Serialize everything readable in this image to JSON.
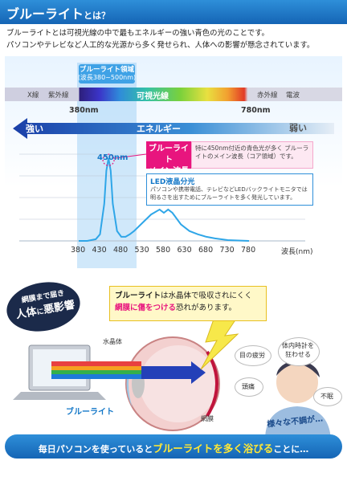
{
  "header": {
    "title": "ブルーライト",
    "title_suffix": "とは？"
  },
  "intro": {
    "line1": "ブルーライトとは可視光線の中で最もエネルギーの強い青色の光のことです。",
    "line2": "パソコンやテレビなど人工的な光源から多く発せられ、人体への影響が懸念されています。"
  },
  "spectrum": {
    "band_title": "ブルーライト領域",
    "band_range": "(波長380~500nm)",
    "left_labels": [
      "X線",
      "紫外線"
    ],
    "visible_label": "可視光線",
    "right_labels": [
      "赤外線",
      "電波"
    ],
    "nm_start": "380nm",
    "nm_end": "780nm"
  },
  "energy": {
    "strong": "強い",
    "label": "エネルギー",
    "weak": "弱い"
  },
  "peak": {
    "wavelength": "450nm",
    "callout_title_1": "ブルーライト",
    "callout_title_2": "メイン波長",
    "callout_desc": "特に450nm付近の青色光が多く ブルーライトのメイン波長（コア領域）です。"
  },
  "led": {
    "title": "LED液晶分光",
    "desc": "パソコンや携帯電話、テレビなどLEDバックライトモニタでは明るさを出すためにブルーライトを多く発光しています。"
  },
  "chart_data": {
    "type": "line",
    "x": [
      380,
      400,
      420,
      430,
      440,
      445,
      450,
      455,
      460,
      470,
      480,
      490,
      500,
      510,
      530,
      550,
      570,
      580,
      590,
      600,
      620,
      640,
      660,
      680,
      700,
      730,
      780
    ],
    "y": [
      0.0,
      0.0,
      0.02,
      0.08,
      0.45,
      0.85,
      1.0,
      0.85,
      0.45,
      0.12,
      0.05,
      0.05,
      0.08,
      0.12,
      0.22,
      0.32,
      0.38,
      0.34,
      0.38,
      0.34,
      0.2,
      0.12,
      0.08,
      0.05,
      0.03,
      0.01,
      0.0
    ],
    "x_ticks": [
      380,
      430,
      480,
      530,
      580,
      630,
      680,
      730,
      780
    ],
    "xlabel": "波長(nm)",
    "xlim": [
      380,
      780
    ],
    "ylim": [
      0,
      1.05
    ],
    "grid": true
  },
  "lower": {
    "tag_line1": "網膜まで届き",
    "tag_line2a": "人体",
    "tag_line2b": "に",
    "tag_line2c": "悪影響",
    "info_a": "ブルーライト",
    "info_b": "は水晶体で吸収されにくく",
    "info_c": "網膜に傷をつける",
    "info_d": "恐れがあります。",
    "lens_label": "水晶体",
    "retina_label": "網膜",
    "blue_light_label": "ブルーライト",
    "symptoms": [
      "目の疲労",
      "体内時計を狂わせる",
      "頭痛",
      "不眠"
    ],
    "various": "様々な不調が…"
  },
  "footer": {
    "prefix": "毎日パソコンを使っていると",
    "highlight": "ブルーライトを多く浴びる",
    "suffix": "ことに…"
  }
}
